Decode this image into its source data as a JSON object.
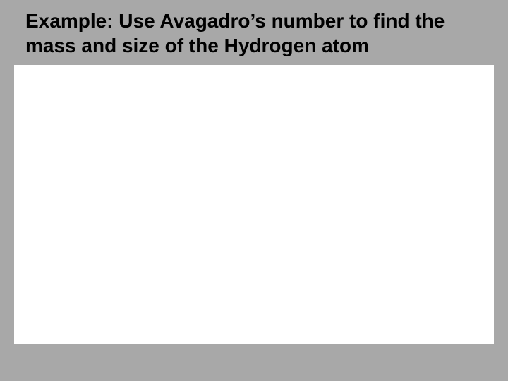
{
  "slide": {
    "title": "Example: Use Avagadro’s number to find the mass and size of the Hydrogen atom",
    "background_color": "#a8a8a8",
    "content_background_color": "#ffffff",
    "title_color": "#000000",
    "title_fontsize": 28,
    "title_fontweight": "bold"
  }
}
